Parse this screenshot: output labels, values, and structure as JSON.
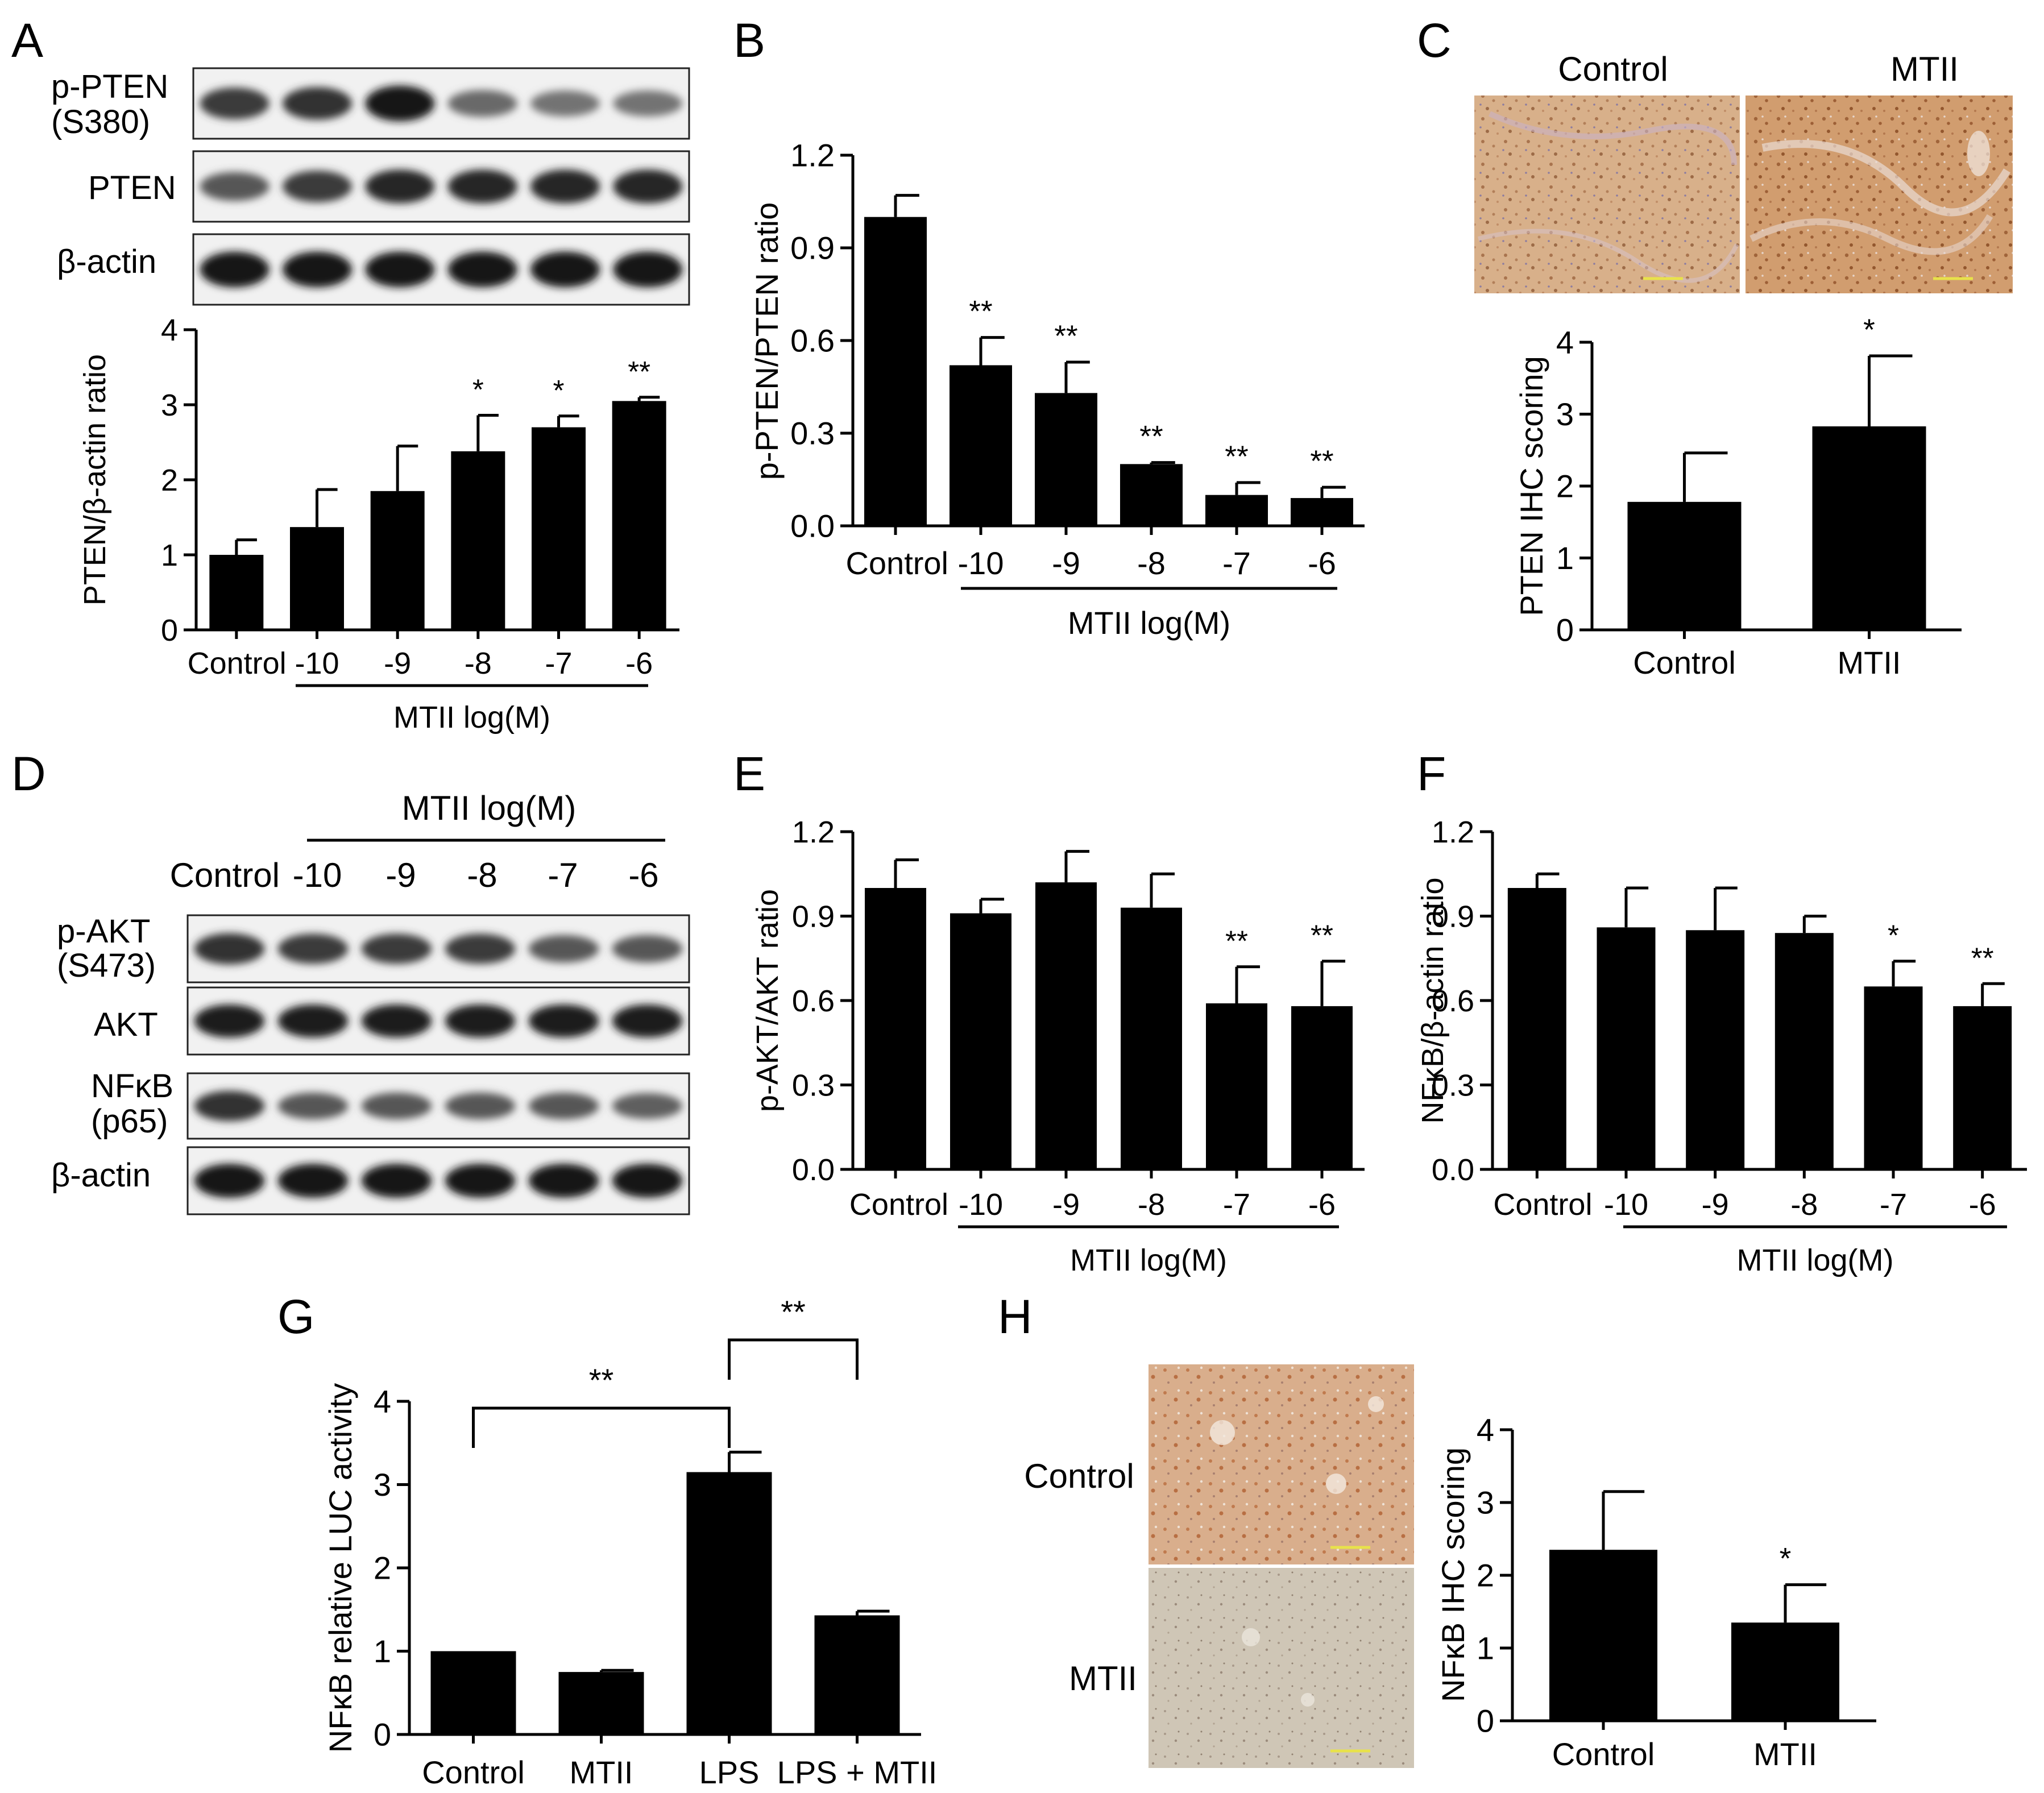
{
  "panels": {
    "A": {
      "letter": "A",
      "blot": {
        "rows": [
          {
            "label": "p-PTEN",
            "label2": "(S380)",
            "intensity": [
              0.75,
              0.8,
              0.95,
              0.5,
              0.45,
              0.45
            ]
          },
          {
            "label": "PTEN",
            "label2": "",
            "intensity": [
              0.6,
              0.75,
              0.85,
              0.85,
              0.85,
              0.85
            ]
          },
          {
            "label": "β-actin",
            "label2": "",
            "intensity": [
              0.95,
              0.95,
              0.95,
              0.95,
              0.95,
              0.95
            ]
          }
        ]
      },
      "chart": {
        "type": "bar",
        "ylabel": "PTEN/β-actin ratio",
        "ylim": [
          0,
          4
        ],
        "yticks": [
          "0",
          "1",
          "2",
          "3",
          "4"
        ],
        "ytick_values": [
          0,
          1,
          2,
          3,
          4
        ],
        "categories": [
          "Control",
          "-10",
          "-9",
          "-8",
          "-7",
          "-6"
        ],
        "values": [
          1.0,
          1.37,
          1.85,
          2.38,
          2.7,
          3.05
        ],
        "errors": [
          0.2,
          0.5,
          0.6,
          0.48,
          0.15,
          0.05
        ],
        "sig": [
          "",
          "",
          "",
          "*",
          "*",
          "**"
        ],
        "group_label": "MTII log(M)"
      }
    },
    "B": {
      "letter": "B",
      "chart": {
        "type": "bar",
        "ylabel": "p-PTEN/PTEN ratio",
        "ylim": [
          0,
          1.2
        ],
        "yticks": [
          "0.0",
          "0.3",
          "0.6",
          "0.9",
          "1.2"
        ],
        "ytick_values": [
          0,
          0.3,
          0.6,
          0.9,
          1.2
        ],
        "categories": [
          "Control",
          "-10",
          "-9",
          "-8",
          "-7",
          "-6"
        ],
        "values": [
          1.0,
          0.52,
          0.43,
          0.2,
          0.1,
          0.09
        ],
        "errors": [
          0.07,
          0.09,
          0.1,
          0.005,
          0.04,
          0.035
        ],
        "sig": [
          "",
          "**",
          "**",
          "**",
          "**",
          "**"
        ],
        "group_label": "MTII log(M)"
      }
    },
    "C": {
      "letter": "C",
      "image_labels": [
        "Control",
        "MTII"
      ],
      "chart": {
        "type": "bar",
        "ylabel": "PTEN IHC scoring",
        "ylim": [
          0,
          4
        ],
        "yticks": [
          "0",
          "1",
          "2",
          "3",
          "4"
        ],
        "ytick_values": [
          0,
          1,
          2,
          3,
          4
        ],
        "categories": [
          "Control",
          "MTII"
        ],
        "values": [
          1.78,
          2.83
        ],
        "errors": [
          0.68,
          0.98
        ],
        "sig": [
          "",
          "*"
        ]
      }
    },
    "D": {
      "letter": "D",
      "group_label": "MTII log(M)",
      "lane_labels": [
        "Control",
        "-10",
        "-9",
        "-8",
        "-7",
        "-6"
      ],
      "blot": {
        "rows": [
          {
            "label": "p-AKT",
            "label2": "(S473)",
            "intensity": [
              0.8,
              0.75,
              0.75,
              0.75,
              0.6,
              0.6
            ]
          },
          {
            "label": "AKT",
            "label2": "",
            "intensity": [
              0.9,
              0.9,
              0.9,
              0.9,
              0.9,
              0.9
            ]
          },
          {
            "label": "NFκB",
            "label2": "(p65)",
            "intensity": [
              0.8,
              0.6,
              0.6,
              0.6,
              0.6,
              0.55
            ]
          },
          {
            "label": "β-actin",
            "label2": "",
            "intensity": [
              0.95,
              0.95,
              0.95,
              0.95,
              0.95,
              0.95
            ]
          }
        ]
      }
    },
    "E": {
      "letter": "E",
      "chart": {
        "type": "bar",
        "ylabel": "p-AKT/AKT ratio",
        "ylim": [
          0,
          1.2
        ],
        "yticks": [
          "0.0",
          "0.3",
          "0.6",
          "0.9",
          "1.2"
        ],
        "ytick_values": [
          0,
          0.3,
          0.6,
          0.9,
          1.2
        ],
        "categories": [
          "Control",
          "-10",
          "-9",
          "-8",
          "-7",
          "-6"
        ],
        "values": [
          1.0,
          0.91,
          1.02,
          0.93,
          0.59,
          0.58
        ],
        "errors": [
          0.1,
          0.05,
          0.11,
          0.12,
          0.13,
          0.16
        ],
        "sig": [
          "",
          "",
          "",
          "",
          "**",
          "**"
        ],
        "group_label": "MTII log(M)"
      }
    },
    "F": {
      "letter": "F",
      "chart": {
        "type": "bar",
        "ylabel": "NFκB/β-actin ratio",
        "ylim": [
          0,
          1.2
        ],
        "yticks": [
          "0.0",
          "0.3",
          "0.6",
          "0.9",
          "1.2"
        ],
        "ytick_values": [
          0,
          0.3,
          0.6,
          0.9,
          1.2
        ],
        "categories": [
          "Control",
          "-10",
          "-9",
          "-8",
          "-7",
          "-6"
        ],
        "values": [
          1.0,
          0.86,
          0.85,
          0.84,
          0.65,
          0.58
        ],
        "errors": [
          0.05,
          0.14,
          0.15,
          0.06,
          0.09,
          0.08
        ],
        "sig": [
          "",
          "",
          "",
          "",
          "*",
          "**"
        ],
        "group_label": "MTII log(M)"
      }
    },
    "G": {
      "letter": "G",
      "chart": {
        "type": "bar",
        "ylabel": "NFκB relative LUC activity",
        "ylim": [
          0,
          4
        ],
        "yticks": [
          "0",
          "1",
          "2",
          "3",
          "4"
        ],
        "ytick_values": [
          0,
          1,
          2,
          3,
          4
        ],
        "categories": [
          "Control",
          "MTII",
          "LPS",
          "LPS + MTII"
        ],
        "values": [
          1.0,
          0.75,
          3.15,
          1.43
        ],
        "errors": [
          0.0,
          0.02,
          0.24,
          0.05
        ],
        "sig": [
          "",
          "",
          "",
          ""
        ],
        "brackets": [
          {
            "from": 0,
            "to": 2,
            "label": "**"
          },
          {
            "from": 2,
            "to": 3,
            "label": "**"
          }
        ]
      }
    },
    "H": {
      "letter": "H",
      "image_labels": [
        "Control",
        "MTII"
      ],
      "chart": {
        "type": "bar",
        "ylabel": "NFκB IHC scoring",
        "ylim": [
          0,
          4
        ],
        "yticks": [
          "0",
          "1",
          "2",
          "3",
          "4"
        ],
        "ytick_values": [
          0,
          1,
          2,
          3,
          4
        ],
        "categories": [
          "Control",
          "MTII"
        ],
        "values": [
          2.35,
          1.35
        ],
        "errors": [
          0.8,
          0.52
        ],
        "sig": [
          "",
          "*"
        ]
      }
    }
  },
  "chart_data": [
    {
      "type": "bar",
      "panel": "A",
      "ylabel": "PTEN/β-actin ratio",
      "ylim": [
        0,
        4
      ],
      "categories": [
        "Control",
        "-10",
        "-9",
        "-8",
        "-7",
        "-6"
      ],
      "values": [
        1.0,
        1.37,
        1.85,
        2.38,
        2.7,
        3.05
      ],
      "xlabel": "MTII log(M)"
    },
    {
      "type": "bar",
      "panel": "B",
      "ylabel": "p-PTEN/PTEN ratio",
      "ylim": [
        0,
        1.2
      ],
      "categories": [
        "Control",
        "-10",
        "-9",
        "-8",
        "-7",
        "-6"
      ],
      "values": [
        1.0,
        0.52,
        0.43,
        0.2,
        0.1,
        0.09
      ],
      "xlabel": "MTII log(M)"
    },
    {
      "type": "bar",
      "panel": "C",
      "ylabel": "PTEN IHC scoring",
      "ylim": [
        0,
        4
      ],
      "categories": [
        "Control",
        "MTII"
      ],
      "values": [
        1.78,
        2.83
      ]
    },
    {
      "type": "bar",
      "panel": "E",
      "ylabel": "p-AKT/AKT ratio",
      "ylim": [
        0,
        1.2
      ],
      "categories": [
        "Control",
        "-10",
        "-9",
        "-8",
        "-7",
        "-6"
      ],
      "values": [
        1.0,
        0.91,
        1.02,
        0.93,
        0.59,
        0.58
      ],
      "xlabel": "MTII log(M)"
    },
    {
      "type": "bar",
      "panel": "F",
      "ylabel": "NFκB/β-actin ratio",
      "ylim": [
        0,
        1.2
      ],
      "categories": [
        "Control",
        "-10",
        "-9",
        "-8",
        "-7",
        "-6"
      ],
      "values": [
        1.0,
        0.86,
        0.85,
        0.84,
        0.65,
        0.58
      ],
      "xlabel": "MTII log(M)"
    },
    {
      "type": "bar",
      "panel": "G",
      "ylabel": "NFκB relative LUC activity",
      "ylim": [
        0,
        4
      ],
      "categories": [
        "Control",
        "MTII",
        "LPS",
        "LPS + MTII"
      ],
      "values": [
        1.0,
        0.75,
        3.15,
        1.43
      ]
    },
    {
      "type": "bar",
      "panel": "H",
      "ylabel": "NFκB IHC scoring",
      "ylim": [
        0,
        4
      ],
      "categories": [
        "Control",
        "MTII"
      ],
      "values": [
        2.35,
        1.35
      ]
    }
  ]
}
